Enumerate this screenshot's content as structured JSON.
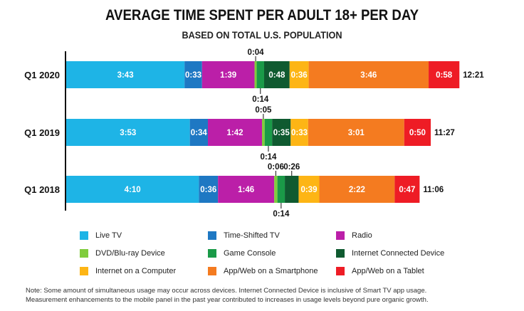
{
  "chart_data": {
    "type": "bar",
    "orientation": "horizontal",
    "stacked": true,
    "title": "AVERAGE TIME SPENT PER ADULT 18+ PER DAY",
    "subtitle": "BASED ON TOTAL U.S. POPULATION",
    "categories": [
      "Q1 2020",
      "Q1 2019",
      "Q1 2018"
    ],
    "totals": [
      "12:21",
      "11:27",
      "11:06"
    ],
    "legend_position": "bottom",
    "grid": false,
    "series": [
      {
        "name": "Live TV",
        "color": "#1eb4e6",
        "values": [
          "3:43",
          "3:53",
          "4:10"
        ]
      },
      {
        "name": "Time-Shifted TV",
        "color": "#1e78c3",
        "values": [
          "0:33",
          "0:34",
          "0:36"
        ]
      },
      {
        "name": "Radio",
        "color": "#bb1fa8",
        "values": [
          "1:39",
          "1:42",
          "1:46"
        ]
      },
      {
        "name": "DVD/Blu-ray Device",
        "color": "#80cc3d",
        "values": [
          "0:04",
          "0:05",
          "0:06"
        ]
      },
      {
        "name": "Game Console",
        "color": "#1a9a48",
        "values": [
          "0:14",
          "0:14",
          "0:14"
        ]
      },
      {
        "name": "Internet Connected Device",
        "color": "#0f5a30",
        "values": [
          "0:48",
          "0:35",
          "0:26"
        ]
      },
      {
        "name": "Internet on a Computer",
        "color": "#fdb515",
        "values": [
          "0:36",
          "0:33",
          "0:39"
        ]
      },
      {
        "name": "App/Web on a Smartphone",
        "color": "#f47b20",
        "values": [
          "3:46",
          "3:01",
          "2:22"
        ]
      },
      {
        "name": "App/Web on a Tablet",
        "color": "#ee1c25",
        "values": [
          "0:58",
          "0:50",
          "0:47"
        ]
      }
    ]
  },
  "note": {
    "line1": "Note: Some amount of simultaneous usage may occur across devices. Internet Connected Device is inclusive of Smart TV app usage.",
    "line2": "Measurement enhancements to the mobile panel in the past year contributed to increases in usage levels beyond pure organic growth."
  }
}
